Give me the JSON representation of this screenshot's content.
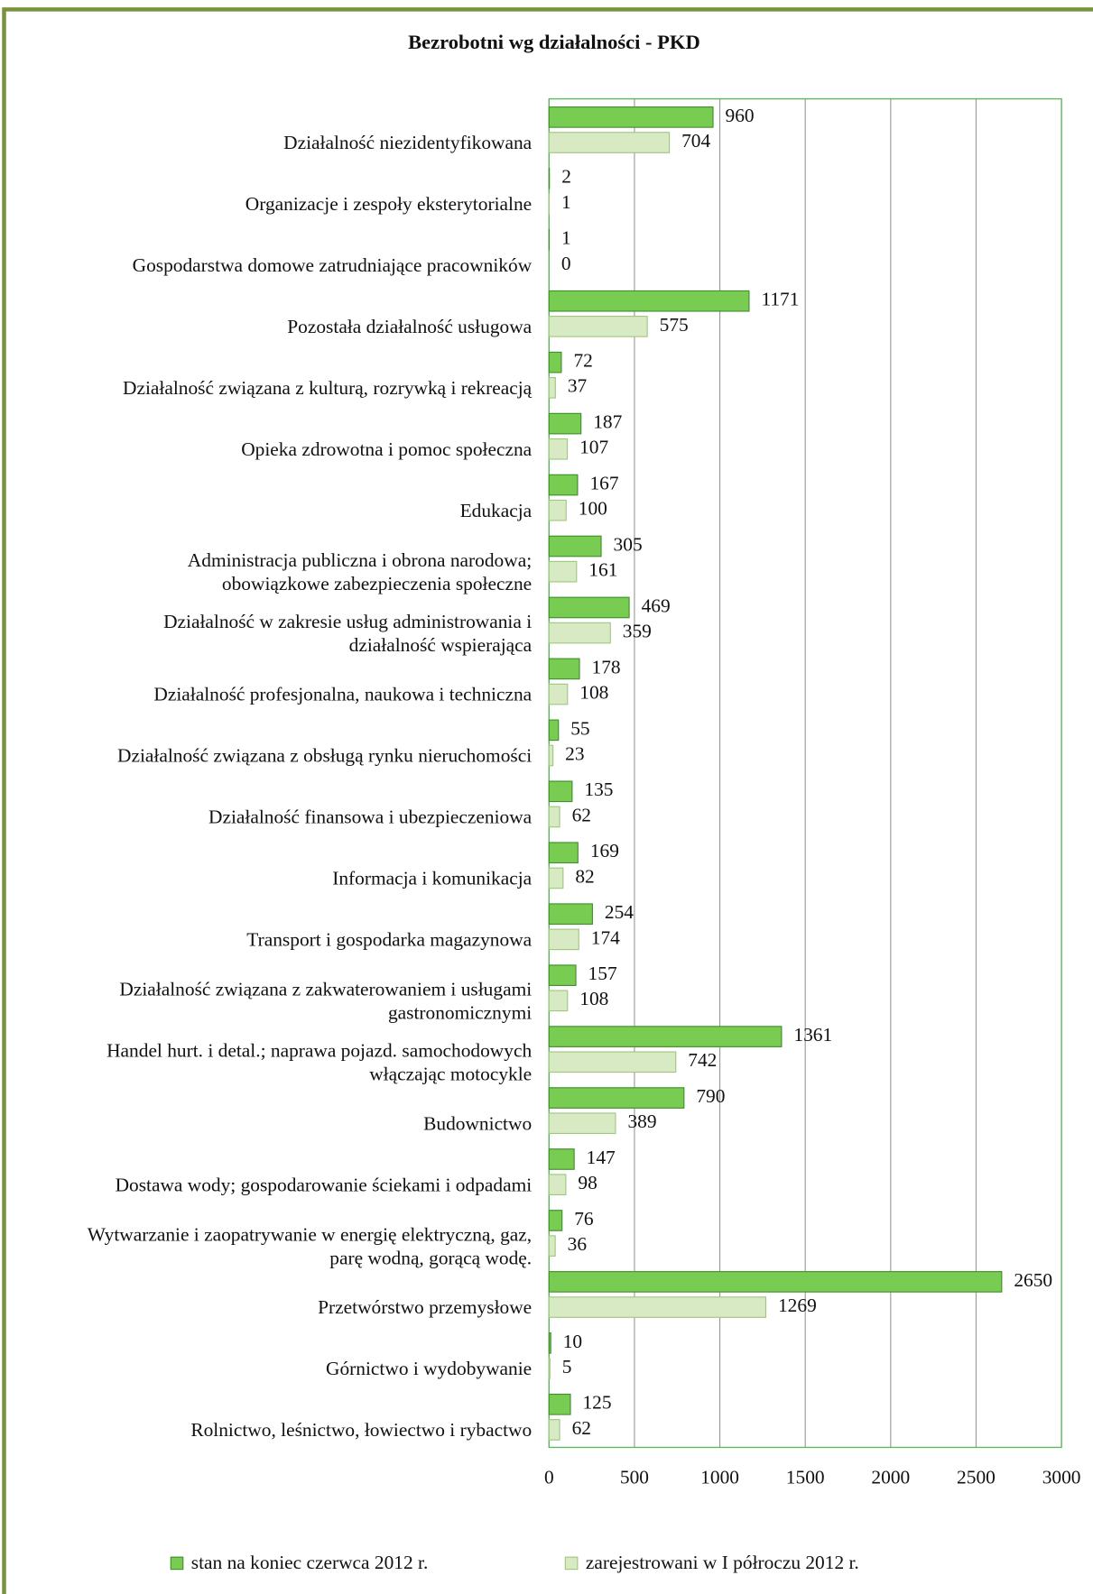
{
  "chart_data": {
    "type": "hbar",
    "title": "Bezrobotni wg  działalności - PKD",
    "categories": [
      "Działalność niezidentyfikowana",
      "Organizacje i zespoły eksterytorialne",
      "Gospodarstwa domowe zatrudniające pracowników",
      "Pozostała działalność usługowa",
      "Działalność związana z kulturą, rozrywką i rekreacją",
      "Opieka zdrowotna  i pomoc społeczna",
      "Edukacja",
      "Administracja publiczna i obrona narodowa;\nobowiązkowe zabezpieczenia społeczne",
      "Działalność w zakresie usług administrowania i\ndziałalność wspierająca",
      "Działalność profesjonalna, naukowa i techniczna",
      "Działalność związana z obsługą rynku nieruchomości",
      "Działalność finansowa i ubezpieczeniowa",
      "Informacja i komunikacja",
      "Transport i gospodarka magazynowa",
      "Działalność związana z zakwaterowaniem i usługami\ngastronomicznymi",
      "Handel hurt. i detal.; naprawa pojazd. samochodowych\nwłączając motocykle",
      "Budownictwo",
      "Dostawa wody; gospodarowanie ściekami i odpadami",
      "Wytwarzanie i zaopatrywanie w energię elektryczną, gaz,\nparę wodną, gorącą wodę.",
      "Przetwórstwo przemysłowe",
      "Górnictwo i wydobywanie",
      "Rolnictwo, leśnictwo, łowiectwo i rybactwo"
    ],
    "series": [
      {
        "name": "stan  na  koniec czerwca  2012 r.",
        "color": "#79cc52",
        "values": [
          960,
          2,
          1,
          1171,
          72,
          187,
          167,
          305,
          469,
          178,
          55,
          135,
          169,
          254,
          157,
          1361,
          790,
          147,
          76,
          2650,
          10,
          125
        ]
      },
      {
        "name": "zarejestrowani  w  I półroczu 2012 r.",
        "color": "#d8eac3",
        "values": [
          704,
          1,
          0,
          575,
          37,
          107,
          100,
          161,
          359,
          108,
          23,
          62,
          82,
          174,
          108,
          742,
          389,
          98,
          36,
          1269,
          5,
          62
        ]
      }
    ],
    "xlim": [
      0,
      3000
    ],
    "xticks": [
      0,
      500,
      1000,
      1500,
      2000,
      2500,
      3000
    ],
    "grid": true,
    "legend": "bottom"
  }
}
